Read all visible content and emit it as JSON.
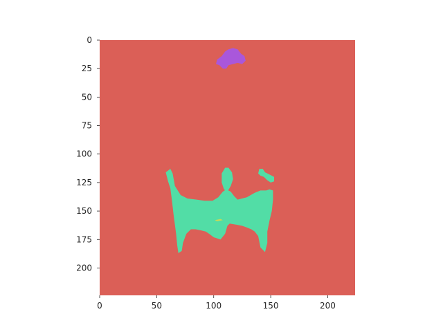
{
  "chart_data": {
    "type": "heatmap",
    "title": "",
    "xlabel": "",
    "ylabel": "",
    "image_width": 224,
    "image_height": 224,
    "xlim": [
      0,
      224
    ],
    "ylim": [
      224,
      0
    ],
    "x_ticks": [
      0,
      50,
      100,
      150,
      200
    ],
    "y_ticks": [
      0,
      25,
      50,
      75,
      100,
      125,
      150,
      175,
      200
    ],
    "grid": false,
    "legend": "none",
    "background_color": "#db5f57",
    "regions": [
      {
        "class_index": 1,
        "color": "#52dda6",
        "polygon": [
          [
            58,
            116
          ],
          [
            62,
            113
          ],
          [
            64,
            117
          ],
          [
            66,
            128
          ],
          [
            71,
            136
          ],
          [
            77,
            139
          ],
          [
            85,
            140
          ],
          [
            92,
            141
          ],
          [
            99,
            141
          ],
          [
            104,
            138
          ],
          [
            108,
            133
          ],
          [
            111,
            131
          ],
          [
            115,
            133
          ],
          [
            118,
            137
          ],
          [
            121,
            140
          ],
          [
            129,
            138
          ],
          [
            136,
            134
          ],
          [
            141,
            132
          ],
          [
            146,
            132
          ],
          [
            149,
            131
          ],
          [
            152,
            132
          ],
          [
            152,
            140
          ],
          [
            151,
            150
          ],
          [
            149,
            158
          ],
          [
            147,
            168
          ],
          [
            147,
            178
          ],
          [
            145,
            186
          ],
          [
            141,
            182
          ],
          [
            139,
            172
          ],
          [
            136,
            168
          ],
          [
            133,
            166
          ],
          [
            128,
            164
          ],
          [
            125,
            163
          ],
          [
            120,
            162
          ],
          [
            114,
            161
          ],
          [
            112,
            163
          ],
          [
            110,
            170
          ],
          [
            106,
            175
          ],
          [
            100,
            173
          ],
          [
            96,
            170
          ],
          [
            93,
            168
          ],
          [
            89,
            167
          ],
          [
            84,
            166
          ],
          [
            80,
            166
          ],
          [
            76,
            170
          ],
          [
            73,
            178
          ],
          [
            72,
            185
          ],
          [
            69,
            187
          ],
          [
            68,
            180
          ],
          [
            67,
            170
          ],
          [
            66,
            162
          ],
          [
            65,
            155
          ],
          [
            64,
            146
          ],
          [
            63,
            138
          ],
          [
            62,
            130
          ],
          [
            60,
            124
          ]
        ]
      },
      {
        "class_index": 1,
        "color": "#52dda6",
        "polygon": [
          [
            107,
            125
          ],
          [
            107,
            117
          ],
          [
            110,
            112
          ],
          [
            113,
            112
          ],
          [
            116,
            116
          ],
          [
            117,
            122
          ],
          [
            115,
            128
          ],
          [
            112,
            133
          ],
          [
            109,
            131
          ]
        ]
      },
      {
        "class_index": 1,
        "color": "#52dda6",
        "polygon": [
          [
            140,
            113
          ],
          [
            143,
            113
          ],
          [
            145,
            116
          ],
          [
            149,
            118
          ],
          [
            153,
            120
          ],
          [
            153,
            124
          ],
          [
            150,
            125
          ],
          [
            147,
            123
          ],
          [
            144,
            120
          ],
          [
            141,
            119
          ],
          [
            139,
            117
          ]
        ]
      },
      {
        "class_index": 2,
        "color": "#a957db",
        "polygon": [
          [
            103,
            17
          ],
          [
            107,
            14
          ],
          [
            110,
            10
          ],
          [
            113,
            8
          ],
          [
            117,
            7
          ],
          [
            121,
            8
          ],
          [
            124,
            12
          ],
          [
            127,
            14
          ],
          [
            128,
            18
          ],
          [
            125,
            21
          ],
          [
            121,
            20
          ],
          [
            117,
            21
          ],
          [
            113,
            22
          ],
          [
            111,
            25
          ],
          [
            108,
            25
          ],
          [
            105,
            22
          ],
          [
            102,
            21
          ]
        ]
      },
      {
        "class_index": 3,
        "color": "#c9d957",
        "polygon": [
          [
            101,
            158
          ],
          [
            106,
            157
          ],
          [
            108,
            158
          ],
          [
            103,
            159
          ]
        ]
      }
    ]
  }
}
